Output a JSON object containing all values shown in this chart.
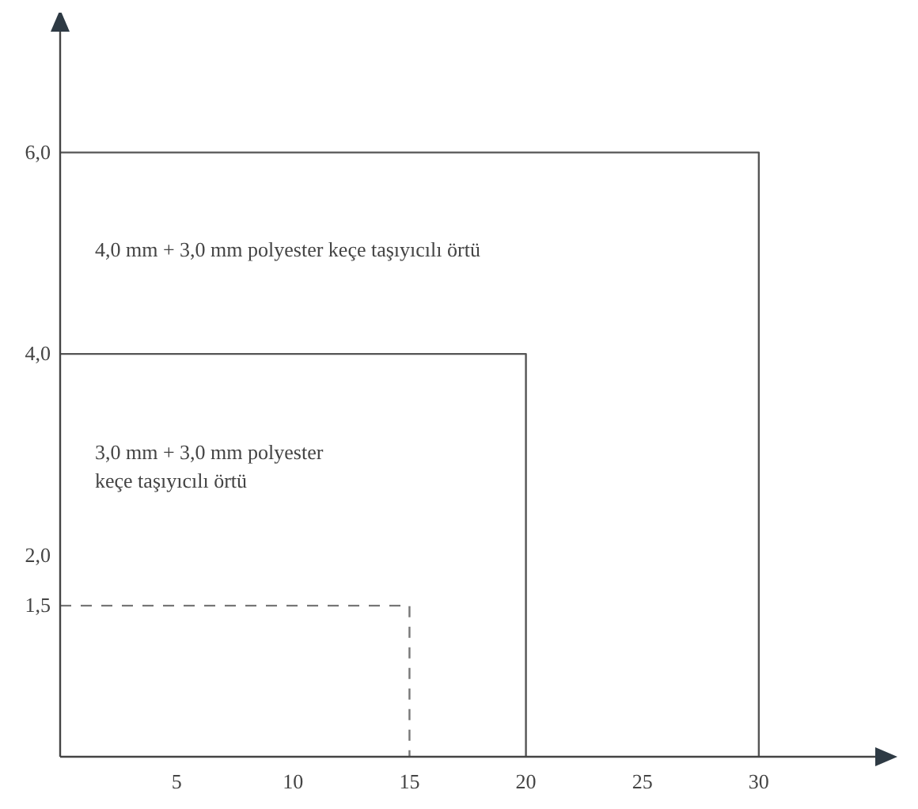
{
  "chart_data": {
    "type": "line",
    "xlim": [
      0,
      35
    ],
    "ylim": [
      0,
      7.2
    ],
    "xticks": [
      5,
      10,
      15,
      20,
      25,
      30
    ],
    "yticks": [
      {
        "value": 1.5,
        "label": "1,5"
      },
      {
        "value": 2,
        "label": "2,0"
      },
      {
        "value": 4,
        "label": "4,0"
      },
      {
        "value": 6,
        "label": "6,0"
      }
    ],
    "series": [
      {
        "color": "#777777",
        "line_style": "dashed",
        "x": [
          0,
          15,
          15
        ],
        "values": [
          1.5,
          1.5,
          0
        ]
      },
      {
        "color": "#555555",
        "line_style": "solid",
        "x": [
          0,
          20,
          20
        ],
        "values": [
          4,
          4,
          0
        ]
      },
      {
        "color": "#555555",
        "line_style": "solid",
        "x": [
          0,
          30,
          30
        ],
        "values": [
          6,
          6,
          0
        ]
      }
    ],
    "annotations": [
      "4,0 mm + 3,0 mm polyester keçe taşıyıcılı örtü",
      "3,0 mm + 3,0 mm polyester\nkeçe taşıyıcılı örtü"
    ],
    "grid": false
  }
}
